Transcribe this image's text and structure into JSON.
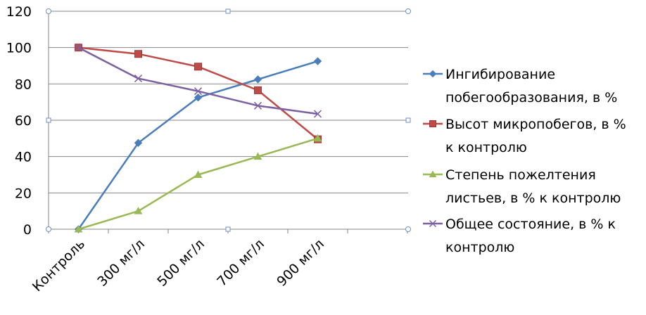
{
  "chart_data": {
    "type": "line",
    "title": "",
    "xlabel": "",
    "ylabel": "",
    "categories": [
      "Контроль",
      "300 мг/л",
      "500 мг/л",
      "700 мг/л",
      "900 мг/л"
    ],
    "ylim": [
      0,
      120
    ],
    "yticks": [
      "0",
      "20",
      "40",
      "60",
      "80",
      "100",
      "120"
    ],
    "grid": "horizontal",
    "legend_position": "right",
    "series": [
      {
        "name_lines": [
          "Ингибирование",
          "побегообразования, в %"
        ],
        "values": [
          0,
          47.5,
          72.5,
          82.5,
          92.5
        ],
        "color": "#4a7ebb",
        "marker": "diamond"
      },
      {
        "name_lines": [
          "Высот микропобегов, в %",
          "к контролю"
        ],
        "values": [
          100,
          96.5,
          89.5,
          76.5,
          49.5
        ],
        "color": "#be4b48",
        "marker": "square"
      },
      {
        "name_lines": [
          "Степень пожелтения",
          "листьев, в % к контролю"
        ],
        "values": [
          0,
          10,
          30,
          40,
          50
        ],
        "color": "#98b954",
        "marker": "triangle"
      },
      {
        "name_lines": [
          "Общее состояние, в % к",
          "контролю"
        ],
        "values": [
          100,
          83,
          76,
          68,
          63.5
        ],
        "color": "#7d60a0",
        "marker": "x"
      }
    ]
  }
}
